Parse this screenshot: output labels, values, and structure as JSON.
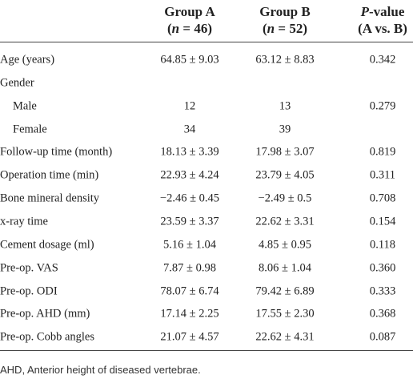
{
  "table": {
    "header": [
      {
        "lines": [
          [
            {
              "text": "Group A"
            }
          ],
          [
            {
              "text": "("
            },
            {
              "text": "n",
              "italic": true
            },
            {
              "text": " = 46)"
            }
          ]
        ]
      },
      {
        "lines": [
          [
            {
              "text": "Group B"
            }
          ],
          [
            {
              "text": "("
            },
            {
              "text": "n",
              "italic": true
            },
            {
              "text": " = 52)"
            }
          ]
        ]
      },
      {
        "lines": [
          [
            {
              "text": "P",
              "italic": true
            },
            {
              "text": "-value"
            }
          ],
          [
            {
              "text": "(A vs. B)"
            }
          ]
        ]
      }
    ],
    "rows": [
      {
        "cells": [
          "Age (years)",
          "64.85 ± 9.03",
          "63.12 ± 8.83",
          "0.342"
        ]
      },
      {
        "cells": [
          "Gender"
        ]
      },
      {
        "cells": [
          "Male",
          "12",
          "13",
          "0.279"
        ],
        "indent": true
      },
      {
        "cells": [
          "Female",
          "34",
          "39"
        ],
        "indent": true
      },
      {
        "cells": [
          "Follow-up time (month)",
          "18.13 ± 3.39",
          "17.98 ± 3.07",
          "0.819"
        ]
      },
      {
        "cells": [
          "Operation time (min)",
          "22.93 ± 4.24",
          "23.79 ± 4.05",
          "0.311"
        ]
      },
      {
        "cells": [
          "Bone mineral density",
          "−2.46 ± 0.45",
          "−2.49 ± 0.5",
          "0.708"
        ]
      },
      {
        "cells": [
          "x-ray time",
          "23.59 ± 3.37",
          "22.62 ± 3.31",
          "0.154"
        ]
      },
      {
        "cells": [
          "Cement dosage (ml)",
          "5.16 ± 1.04",
          "4.85 ± 0.95",
          "0.118"
        ]
      },
      {
        "cells": [
          "Pre-op. VAS",
          "7.87 ± 0.98",
          "8.06 ± 1.04",
          "0.360"
        ]
      },
      {
        "cells": [
          "Pre-op. ODI",
          "78.07 ± 6.74",
          "79.42 ± 6.89",
          "0.333"
        ]
      },
      {
        "cells": [
          "Pre-op. AHD (mm)",
          "17.14 ± 2.25",
          "17.55 ± 2.30",
          "0.368"
        ]
      },
      {
        "cells": [
          "Pre-op. Cobb angles",
          "21.07 ± 4.57",
          "22.62 ± 4.31",
          "0.087"
        ]
      }
    ]
  },
  "footnote": "AHD, Anterior height of diseased vertebrae."
}
